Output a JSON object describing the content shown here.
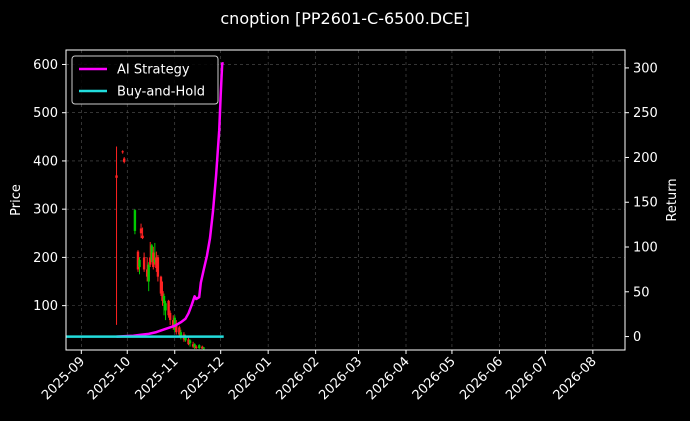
{
  "chart_data": {
    "type": "line",
    "title": "cnoption [PP2601-C-6500.DCE]",
    "ylabel": "Price",
    "y2label": "Return",
    "background": "#000000",
    "grid": true,
    "legend_position": "top-left",
    "x_range": [
      "2025-08-22",
      "2026-08-22"
    ],
    "x_ticks": [
      "2025-09",
      "2025-10",
      "2025-11",
      "2025-12",
      "2026-01",
      "2026-02",
      "2026-03",
      "2026-04",
      "2026-05",
      "2026-06",
      "2026-07",
      "2026-08"
    ],
    "y_range": [
      8,
      630
    ],
    "y_ticks": [
      100,
      200,
      300,
      400,
      500,
      600
    ],
    "y2_range": [
      -15,
      320
    ],
    "y2_ticks": [
      0,
      50,
      100,
      150,
      200,
      250,
      300
    ],
    "up_color": "#00cc00",
    "down_color": "#ff2222",
    "candles": [
      {
        "date": "2025-09-24",
        "open": 370,
        "high": 430,
        "low": 60,
        "close": 365
      },
      {
        "date": "2025-09-28",
        "open": 420,
        "high": 422,
        "low": 415,
        "close": 418
      },
      {
        "date": "2025-09-29",
        "open": 405,
        "high": 408,
        "low": 395,
        "close": 398
      },
      {
        "date": "2025-10-06",
        "open": 255,
        "high": 300,
        "low": 248,
        "close": 298
      },
      {
        "date": "2025-10-08",
        "open": 212,
        "high": 215,
        "low": 170,
        "close": 175
      },
      {
        "date": "2025-10-09",
        "open": 180,
        "high": 200,
        "low": 165,
        "close": 195
      },
      {
        "date": "2025-10-10",
        "open": 260,
        "high": 270,
        "low": 240,
        "close": 250
      },
      {
        "date": "2025-10-11",
        "open": 245,
        "high": 262,
        "low": 238,
        "close": 240
      },
      {
        "date": "2025-10-12",
        "open": 200,
        "high": 210,
        "low": 170,
        "close": 175
      },
      {
        "date": "2025-10-14",
        "open": 175,
        "high": 200,
        "low": 150,
        "close": 160
      },
      {
        "date": "2025-10-15",
        "open": 150,
        "high": 190,
        "low": 130,
        "close": 185
      },
      {
        "date": "2025-10-16",
        "open": 200,
        "high": 232,
        "low": 180,
        "close": 185
      },
      {
        "date": "2025-10-17",
        "open": 195,
        "high": 228,
        "low": 190,
        "close": 225
      },
      {
        "date": "2025-10-18",
        "open": 210,
        "high": 222,
        "low": 175,
        "close": 180
      },
      {
        "date": "2025-10-19",
        "open": 190,
        "high": 230,
        "low": 185,
        "close": 195
      },
      {
        "date": "2025-10-20",
        "open": 200,
        "high": 212,
        "low": 170,
        "close": 178
      },
      {
        "date": "2025-10-21",
        "open": 200,
        "high": 205,
        "low": 150,
        "close": 160
      },
      {
        "date": "2025-10-23",
        "open": 160,
        "high": 162,
        "low": 120,
        "close": 125
      },
      {
        "date": "2025-10-24",
        "open": 130,
        "high": 150,
        "low": 100,
        "close": 110
      },
      {
        "date": "2025-10-25",
        "open": 105,
        "high": 125,
        "low": 80,
        "close": 120
      },
      {
        "date": "2025-10-26",
        "open": 90,
        "high": 110,
        "low": 70,
        "close": 105
      },
      {
        "date": "2025-10-28",
        "open": 110,
        "high": 112,
        "low": 75,
        "close": 80
      },
      {
        "date": "2025-10-29",
        "open": 85,
        "high": 90,
        "low": 60,
        "close": 70
      },
      {
        "date": "2025-10-31",
        "open": 70,
        "high": 80,
        "low": 50,
        "close": 55
      },
      {
        "date": "2025-11-01",
        "open": 50,
        "high": 80,
        "low": 45,
        "close": 75
      },
      {
        "date": "2025-11-02",
        "open": 60,
        "high": 70,
        "low": 40,
        "close": 45
      },
      {
        "date": "2025-11-04",
        "open": 55,
        "high": 58,
        "low": 35,
        "close": 40
      },
      {
        "date": "2025-11-05",
        "open": 35,
        "high": 50,
        "low": 30,
        "close": 45
      },
      {
        "date": "2025-11-07",
        "open": 40,
        "high": 45,
        "low": 25,
        "close": 30
      },
      {
        "date": "2025-11-08",
        "open": 28,
        "high": 40,
        "low": 25,
        "close": 38
      },
      {
        "date": "2025-11-10",
        "open": 30,
        "high": 35,
        "low": 18,
        "close": 20
      },
      {
        "date": "2025-11-11",
        "open": 22,
        "high": 30,
        "low": 15,
        "close": 28
      },
      {
        "date": "2025-11-13",
        "open": 20,
        "high": 25,
        "low": 12,
        "close": 15
      },
      {
        "date": "2025-11-14",
        "open": 14,
        "high": 22,
        "low": 10,
        "close": 20
      },
      {
        "date": "2025-11-15",
        "open": 15,
        "high": 18,
        "low": 10,
        "close": 12
      },
      {
        "date": "2025-11-17",
        "open": 12,
        "high": 20,
        "low": 10,
        "close": 18
      },
      {
        "date": "2025-11-19",
        "open": 15,
        "high": 17,
        "low": 10,
        "close": 11
      },
      {
        "date": "2025-11-20",
        "open": 12,
        "high": 14,
        "low": 9,
        "close": 13
      }
    ],
    "series": [
      {
        "name": "AI Strategy",
        "color": "#ff00ff",
        "axis": "right",
        "points": [
          [
            "2025-09-24",
            0
          ],
          [
            "2025-10-05",
            1
          ],
          [
            "2025-10-10",
            2
          ],
          [
            "2025-10-15",
            3
          ],
          [
            "2025-10-20",
            5
          ],
          [
            "2025-10-25",
            8
          ],
          [
            "2025-11-01",
            12
          ],
          [
            "2025-11-05",
            16
          ],
          [
            "2025-11-08",
            20
          ],
          [
            "2025-11-10",
            26
          ],
          [
            "2025-11-12",
            35
          ],
          [
            "2025-11-14",
            45
          ],
          [
            "2025-11-15",
            42
          ],
          [
            "2025-11-17",
            44
          ],
          [
            "2025-11-18",
            60
          ],
          [
            "2025-11-20",
            75
          ],
          [
            "2025-11-22",
            90
          ],
          [
            "2025-11-24",
            110
          ],
          [
            "2025-11-26",
            140
          ],
          [
            "2025-11-28",
            180
          ],
          [
            "2025-11-30",
            230
          ],
          [
            "2025-12-01",
            270
          ],
          [
            "2025-12-02",
            305
          ],
          [
            "2025-12-03",
            305
          ]
        ]
      },
      {
        "name": "Buy-and-Hold",
        "color": "#22dddd",
        "axis": "right",
        "points": [
          [
            "2025-08-22",
            0
          ],
          [
            "2025-12-03",
            0
          ]
        ]
      }
    ]
  }
}
